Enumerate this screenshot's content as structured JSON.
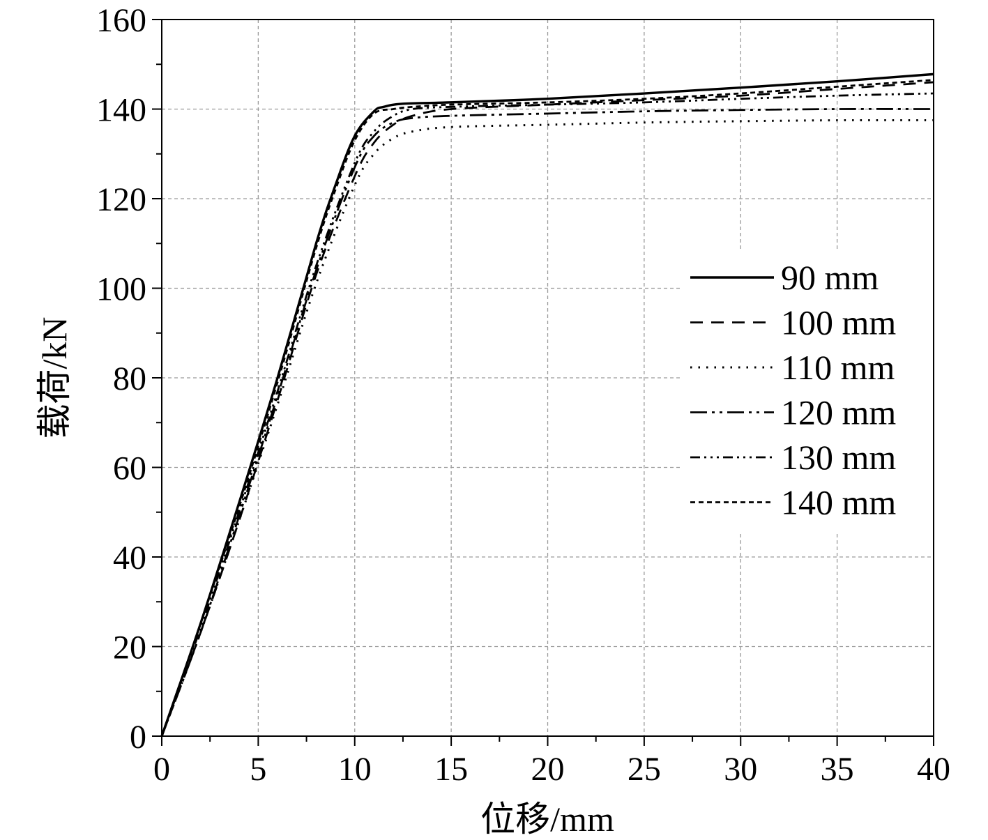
{
  "chart_data": {
    "type": "line",
    "xlabel": "位移/mm",
    "ylabel": "载荷/kN",
    "xlim": [
      0,
      40
    ],
    "ylim": [
      0,
      160
    ],
    "xticks": [
      "0",
      "5",
      "10",
      "15",
      "20",
      "25",
      "30",
      "35",
      "40"
    ],
    "yticks": [
      "0",
      "20",
      "40",
      "60",
      "80",
      "100",
      "120",
      "140",
      "160"
    ],
    "grid": true,
    "legend_position": "right",
    "series": [
      {
        "name": "90 mm",
        "dash": "solid",
        "x": [
          0,
          2,
          4,
          6,
          8,
          9,
          10,
          11,
          11.5,
          12.5,
          15,
          20,
          25,
          30,
          35,
          40
        ],
        "y": [
          0,
          25,
          52,
          80,
          110,
          123,
          134,
          139.5,
          140.5,
          141.2,
          141.5,
          142.3,
          143.5,
          144.8,
          146.2,
          147.8
        ]
      },
      {
        "name": "100 mm",
        "dash": "dashed",
        "x": [
          0,
          2,
          4,
          6,
          8,
          10,
          11,
          12,
          13,
          15,
          20,
          25,
          30,
          35,
          40
        ],
        "y": [
          0,
          23,
          48,
          75,
          103,
          125,
          132.5,
          136.5,
          138.5,
          140,
          141,
          142,
          143,
          144.5,
          146
        ]
      },
      {
        "name": "110 mm",
        "dash": "dotted",
        "x": [
          0,
          2,
          4,
          6,
          8,
          10,
          11,
          12,
          13,
          15,
          20,
          25,
          30,
          35,
          40
        ],
        "y": [
          0,
          23,
          48,
          74,
          101,
          123,
          130,
          133.5,
          135,
          136,
          136.5,
          137,
          137.3,
          137.5,
          137.5
        ]
      },
      {
        "name": "120 mm",
        "dash": "dash-dot-dot",
        "x": [
          0,
          2,
          4,
          6,
          8,
          10,
          11,
          12,
          13,
          15,
          20,
          25,
          30,
          35,
          40
        ],
        "y": [
          0,
          23,
          49,
          76,
          104,
          127,
          134,
          137,
          138,
          138.5,
          139,
          139.5,
          139.8,
          140,
          140
        ]
      },
      {
        "name": "130 mm",
        "dash": "dash-dot-dot-dot",
        "x": [
          0,
          2,
          4,
          6,
          8,
          10,
          11,
          12,
          13,
          15,
          20,
          25,
          30,
          35,
          40
        ],
        "y": [
          0,
          24,
          50,
          77,
          105,
          128,
          135,
          138.5,
          140,
          140.5,
          141,
          141.5,
          142.3,
          143,
          143.5
        ]
      },
      {
        "name": "140 mm",
        "dash": "short-dashed",
        "x": [
          0,
          2,
          4,
          6,
          8,
          9,
          10,
          11,
          12,
          13,
          15,
          20,
          25,
          30,
          35,
          40
        ],
        "y": [
          0,
          25,
          51,
          79,
          109,
          122,
          133,
          139,
          140,
          140.5,
          141,
          141.5,
          142.3,
          143.5,
          145,
          146.5
        ]
      }
    ]
  }
}
